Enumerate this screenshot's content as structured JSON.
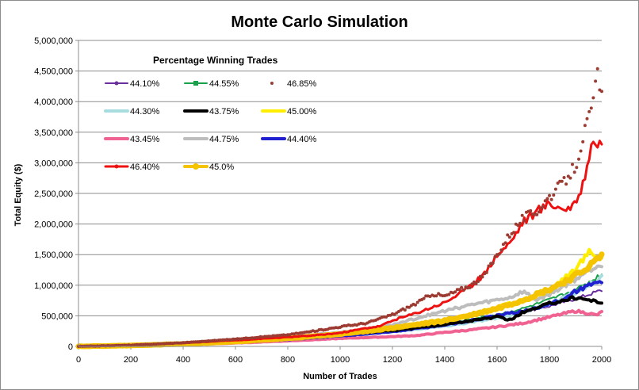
{
  "chart_data": {
    "type": "line",
    "title": "Monte Carlo Simulation",
    "xlabel": "Number of Trades",
    "ylabel": "Total Equity ($)",
    "xlim": [
      0,
      2000
    ],
    "ylim": [
      0,
      5000000
    ],
    "x_ticks": [
      0,
      200,
      400,
      600,
      800,
      1000,
      1200,
      1400,
      1600,
      1800,
      2000
    ],
    "x_tick_labels": [
      "0",
      "200",
      "400",
      "600",
      "800",
      "1000",
      "1200",
      "1400",
      "1600",
      "1800",
      "2000"
    ],
    "y_ticks": [
      0,
      500000,
      1000000,
      1500000,
      2000000,
      2500000,
      3000000,
      3500000,
      4000000,
      4500000,
      5000000
    ],
    "y_tick_labels": [
      "0",
      "500,000",
      "1,000,000",
      "1,500,000",
      "2,000,000",
      "2,500,000",
      "3,000,000",
      "3,500,000",
      "4,000,000",
      "4,500,000",
      "5,000,000"
    ],
    "grid": "horizontal",
    "legend_title": "Percentage Winning Trades",
    "legend_position": "top-left",
    "series": [
      {
        "name": "44.10%",
        "color": "#6a2d9e",
        "marker": "line-dot",
        "x": [
          0,
          200,
          400,
          600,
          800,
          1000,
          1200,
          1400,
          1600,
          1700,
          1800,
          1900,
          1950,
          2000
        ],
        "y": [
          0,
          10000,
          30000,
          70000,
          110000,
          170000,
          240000,
          340000,
          470000,
          560000,
          660000,
          780000,
          850000,
          920000
        ]
      },
      {
        "name": "44.55%",
        "color": "#1aa04a",
        "marker": "line-square",
        "x": [
          0,
          200,
          400,
          600,
          800,
          1000,
          1200,
          1400,
          1600,
          1700,
          1800,
          1900,
          1950,
          2000
        ],
        "y": [
          0,
          12000,
          32000,
          75000,
          120000,
          180000,
          260000,
          370000,
          520000,
          620000,
          760000,
          920000,
          1050000,
          1180000
        ]
      },
      {
        "name": "46.85%",
        "color": "#9c3b32",
        "marker": "dots",
        "x": [
          0,
          200,
          400,
          600,
          800,
          900,
          1000,
          1100,
          1200,
          1300,
          1350,
          1400,
          1500,
          1550,
          1600,
          1650,
          1700,
          1750,
          1800,
          1850,
          1900,
          1930,
          1950,
          1970,
          1980,
          1990,
          2000
        ],
        "y": [
          0,
          20000,
          60000,
          120000,
          190000,
          250000,
          320000,
          380000,
          520000,
          720000,
          860000,
          820000,
          1000000,
          1150000,
          1500000,
          1850000,
          2100000,
          2200000,
          2450000,
          2650000,
          2950000,
          3450000,
          3700000,
          4000000,
          4500000,
          4250000,
          4100000
        ]
      },
      {
        "name": "44.30%",
        "color": "#a8dde0",
        "marker": "line-thick",
        "x": [
          0,
          200,
          400,
          600,
          800,
          1000,
          1200,
          1400,
          1600,
          1700,
          1800,
          1900,
          1950,
          2000
        ],
        "y": [
          0,
          10000,
          28000,
          65000,
          110000,
          165000,
          240000,
          330000,
          460000,
          560000,
          700000,
          880000,
          1000000,
          1120000
        ]
      },
      {
        "name": "43.75%",
        "color": "#000000",
        "marker": "line-thick",
        "x": [
          0,
          200,
          400,
          600,
          800,
          1000,
          1200,
          1300,
          1400,
          1500,
          1600,
          1650,
          1700,
          1750,
          1800,
          1850,
          1900,
          1950,
          2000
        ],
        "y": [
          0,
          20000,
          50000,
          100000,
          150000,
          200000,
          260000,
          310000,
          360000,
          420000,
          480000,
          430000,
          560000,
          620000,
          700000,
          750000,
          800000,
          760000,
          720000
        ]
      },
      {
        "name": "45.00%",
        "color": "#ffee00",
        "marker": "line-thick",
        "x": [
          0,
          200,
          400,
          600,
          800,
          1000,
          1200,
          1400,
          1500,
          1600,
          1700,
          1800,
          1850,
          1900,
          1950,
          2000
        ],
        "y": [
          0,
          12000,
          35000,
          75000,
          120000,
          190000,
          280000,
          420000,
          520000,
          640000,
          760000,
          920000,
          1100000,
          1250000,
          1550000,
          1450000
        ]
      },
      {
        "name": "43.45%",
        "color": "#f06292",
        "marker": "line-thick",
        "x": [
          0,
          200,
          400,
          600,
          800,
          1000,
          1200,
          1300,
          1400,
          1500,
          1600,
          1700,
          1800,
          1900,
          1950,
          1980,
          2000
        ],
        "y": [
          0,
          8000,
          25000,
          55000,
          90000,
          130000,
          160000,
          180000,
          230000,
          270000,
          320000,
          380000,
          480000,
          580000,
          540000,
          510000,
          560000
        ]
      },
      {
        "name": "44.75%",
        "color": "#bdbdbd",
        "marker": "line-thick",
        "x": [
          0,
          200,
          400,
          600,
          800,
          1000,
          1200,
          1300,
          1400,
          1500,
          1600,
          1650,
          1700,
          1750,
          1800,
          1900,
          1950,
          2000
        ],
        "y": [
          0,
          15000,
          40000,
          90000,
          150000,
          230000,
          350000,
          470000,
          580000,
          680000,
          760000,
          800000,
          900000,
          760000,
          850000,
          1100000,
          1250000,
          1350000
        ]
      },
      {
        "name": "44.40%",
        "color": "#2020d0",
        "marker": "line-thick",
        "x": [
          0,
          200,
          400,
          600,
          800,
          1000,
          1200,
          1400,
          1500,
          1600,
          1700,
          1750,
          1800,
          1850,
          1900,
          1950,
          2000
        ],
        "y": [
          0,
          10000,
          30000,
          65000,
          110000,
          170000,
          240000,
          350000,
          420000,
          500000,
          580000,
          620000,
          700000,
          750000,
          900000,
          1000000,
          1060000
        ]
      },
      {
        "name": "46.40%",
        "color": "#ee1111",
        "marker": "line-plus",
        "x": [
          0,
          200,
          400,
          600,
          800,
          900,
          1000,
          1100,
          1150,
          1200,
          1300,
          1400,
          1500,
          1550,
          1600,
          1650,
          1700,
          1750,
          1800,
          1850,
          1900,
          1930,
          1950,
          1970,
          1985,
          2000
        ],
        "y": [
          0,
          20000,
          55000,
          100000,
          150000,
          180000,
          220000,
          300000,
          330000,
          420000,
          560000,
          720000,
          980000,
          1180000,
          1500000,
          1700000,
          2050000,
          2200000,
          2350000,
          2250000,
          2300000,
          2700000,
          3100000,
          3450000,
          3200000,
          3300000
        ]
      },
      {
        "name": "45.0%",
        "color": "#f5c400",
        "marker": "line-circle",
        "x": [
          0,
          200,
          400,
          600,
          800,
          1000,
          1200,
          1400,
          1500,
          1600,
          1700,
          1800,
          1900,
          1950,
          2000
        ],
        "y": [
          0,
          15000,
          40000,
          80000,
          130000,
          200000,
          300000,
          420000,
          510000,
          620000,
          760000,
          930000,
          1150000,
          1300000,
          1480000
        ]
      }
    ]
  }
}
